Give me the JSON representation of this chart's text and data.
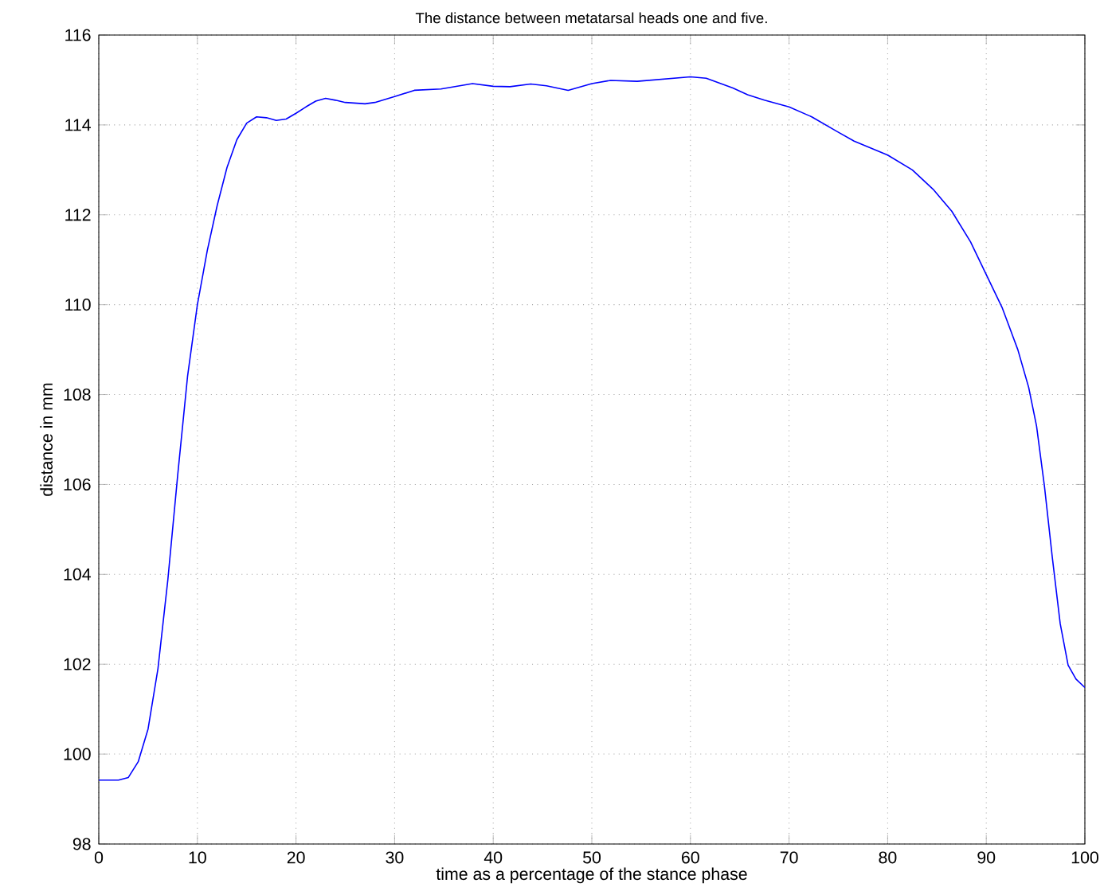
{
  "chart_data": {
    "type": "line",
    "title": "The distance between metatarsal heads one and five.",
    "xlabel": "time as a percentage of the stance phase",
    "ylabel": "distance in mm",
    "xlim": [
      0,
      100
    ],
    "ylim": [
      98,
      116
    ],
    "xticks": [
      0,
      10,
      20,
      30,
      40,
      50,
      60,
      70,
      80,
      90,
      100
    ],
    "yticks": [
      98,
      100,
      102,
      104,
      106,
      108,
      110,
      112,
      114,
      116
    ],
    "grid": true,
    "series": [
      {
        "color": "#0000ff",
        "x": [
          0,
          2,
          3,
          4,
          5,
          6,
          7,
          8,
          9,
          10,
          11,
          12,
          13,
          14,
          15,
          16,
          17,
          18,
          19,
          20,
          21,
          22,
          23,
          24,
          25,
          27,
          28,
          30,
          32,
          34.7,
          37.9,
          40,
          41.7,
          43.8,
          45.4,
          47.6,
          50,
          51.9,
          54.6,
          57.3,
          60,
          61.6,
          64.3,
          65.8,
          67.5,
          70,
          72.3,
          74.9,
          76.6,
          80,
          82.5,
          84.6,
          86.5,
          88.4,
          90,
          91.6,
          93.2,
          94.3,
          95.1,
          95.9,
          96.7,
          97.5,
          98.3,
          99.1,
          100
        ],
        "values": [
          99.42,
          99.42,
          99.48,
          99.83,
          100.56,
          101.9,
          103.87,
          106.2,
          108.4,
          110.0,
          111.2,
          112.2,
          113.05,
          113.67,
          114.04,
          114.18,
          114.16,
          114.1,
          114.13,
          114.26,
          114.4,
          114.53,
          114.59,
          114.55,
          114.5,
          114.47,
          114.5,
          114.63,
          114.77,
          114.8,
          114.92,
          114.86,
          114.85,
          114.91,
          114.87,
          114.77,
          114.92,
          114.99,
          114.97,
          115.02,
          115.07,
          115.04,
          114.82,
          114.67,
          114.55,
          114.4,
          114.18,
          113.85,
          113.64,
          113.33,
          113.0,
          112.57,
          112.08,
          111.4,
          110.67,
          109.94,
          109.0,
          108.16,
          107.3,
          105.96,
          104.37,
          102.9,
          101.98,
          101.67,
          101.48
        ]
      }
    ]
  }
}
